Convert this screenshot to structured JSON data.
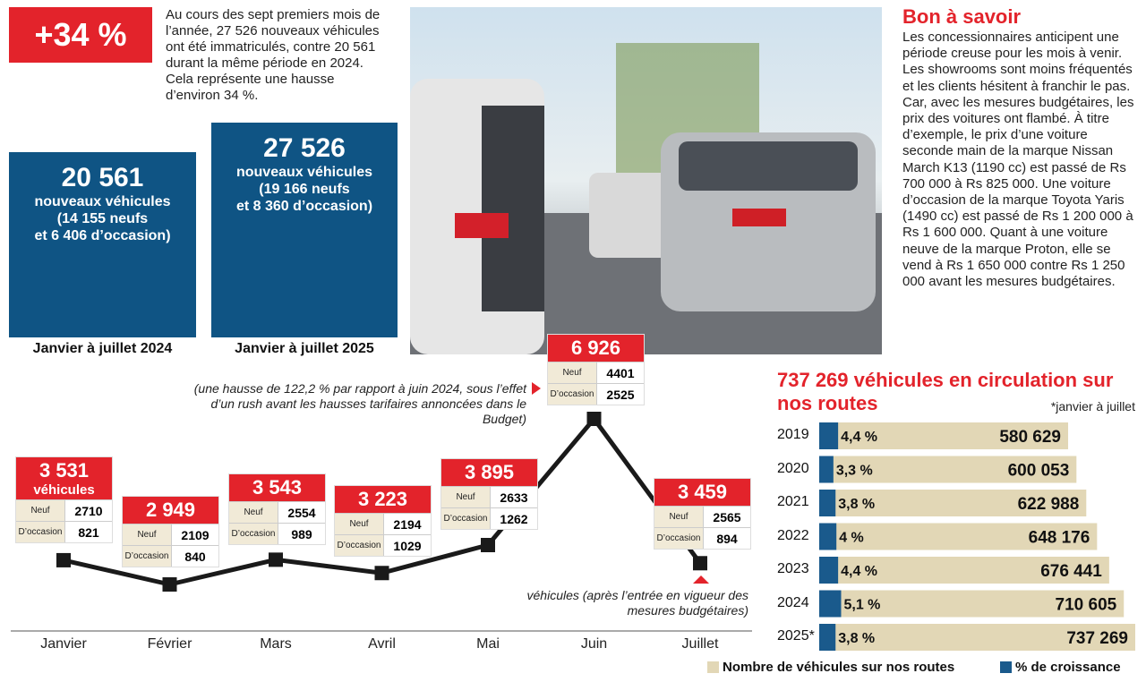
{
  "header": {
    "badge": "+34 %",
    "text": "Au cours des sept premiers mois de l’année, 27 526 nouveaux véhicules ont été immatriculés, contre 20 561 durant la même période en 2024. Cela représente une hausse d’environ 34 %."
  },
  "period_boxes": [
    {
      "total": "20 561",
      "line1": "nouveaux véhicules",
      "line2": "(14 155 neufs",
      "line3": "et 6 406 d’occasion)",
      "caption": "Janvier à juillet 2024"
    },
    {
      "total": "27 526",
      "line1": "nouveaux véhicules",
      "line2": "(19 166 neufs",
      "line3": "et 8 360 d’occasion)",
      "caption": "Janvier à juillet 2025"
    }
  ],
  "sidebar": {
    "title": "Bon à savoir",
    "text": "Les concessionnaires anticipent une période creuse pour les mois à venir. Les showrooms sont moins fréquentés et les clients hésitent à franchir le pas. Car, avec les mesures budgétaires, les prix des voitures ont flambé. À titre d’exemple, le prix d’une voiture seconde main de la marque Nissan March K13 (1190 cc) est passé de Rs 700 000 à Rs 825 000. Une voiture d’occasion de la marque Toyota Yaris (1490 cc) est passé de Rs 1 200 000 à Rs 1 600 000. Quant à une voiture neuve de la marque Proton, elle se vend à Rs 1 650 000 contre Rs 1 250 000 avant les mesures budgétaires."
  },
  "chart_data": [
    {
      "type": "line",
      "color": "#1a1a1a",
      "categories": [
        "Janvier",
        "Février",
        "Mars",
        "Avril",
        "Mai",
        "Juin",
        "Juillet"
      ],
      "values": [
        3531,
        2949,
        3543,
        3223,
        3895,
        6926,
        3459
      ],
      "value_labels": [
        "3 531",
        "2 949",
        "3 543",
        "3 223",
        "3 895",
        "6 926",
        "3 459"
      ],
      "unit_label": "véhicules",
      "breakdown": [
        {
          "name": "Neuf",
          "values": [
            2710,
            2109,
            2554,
            2194,
            2633,
            4401,
            2565
          ]
        },
        {
          "name": "D’occasion",
          "values": [
            821,
            840,
            989,
            1029,
            1262,
            2525,
            894
          ]
        }
      ],
      "annotations": [
        "(une hausse de 122,2 % par rapport à juin 2024, sous l’effet d’un rush avant les hausses tarifaires annoncées dans le Budget)",
        "véhicules (après l’entrée en vigueur des mesures budgétaires)"
      ]
    },
    {
      "type": "bar",
      "title": "737 269 véhicules en circulation sur nos routes",
      "note": "*janvier à juillet",
      "categories": [
        "2019",
        "2020",
        "2021",
        "2022",
        "2023",
        "2024",
        "2025*"
      ],
      "series": [
        {
          "name": "Nombre de véhicules sur nos routes",
          "color": "#e2d7b6",
          "values": [
            580629,
            600053,
            622988,
            648176,
            676441,
            710605,
            737269
          ],
          "value_labels": [
            "580 629",
            "600 053",
            "622 988",
            "648 176",
            "676 441",
            "710 605",
            "737 269"
          ]
        },
        {
          "name": "% de croissance",
          "color": "#1a5a8c",
          "values": [
            4.4,
            3.3,
            3.8,
            4,
            4.4,
            5.1,
            3.8
          ],
          "value_labels": [
            "4,4 %",
            "3,3 %",
            "3,8 %",
            "4 %",
            "4,4 %",
            "5,1 %",
            "3,8 %"
          ]
        }
      ]
    }
  ]
}
